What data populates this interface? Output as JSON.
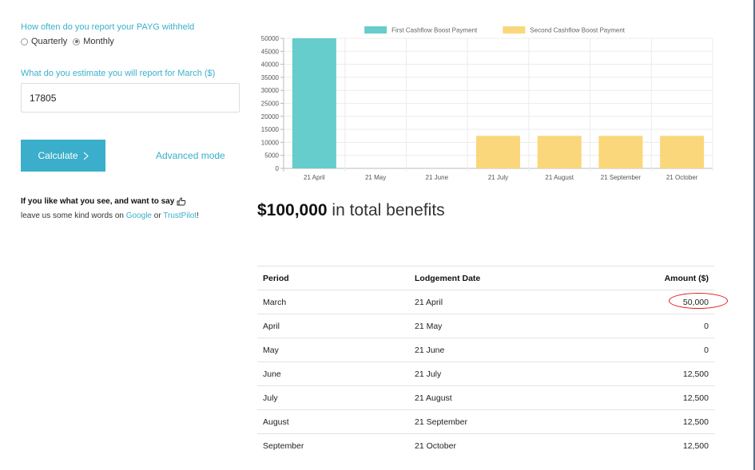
{
  "form": {
    "frequency_label": "How often do you report your PAYG withheld",
    "frequency_options": [
      {
        "label": "Quarterly",
        "checked": false
      },
      {
        "label": "Monthly",
        "checked": true
      }
    ],
    "estimate_label": "What do you estimate you will report for March ($)",
    "estimate_value": "17805",
    "calculate_label": "Calculate",
    "advanced_label": "Advanced mode"
  },
  "promo": {
    "line1": "If you like what you see, and want to say",
    "line2_prefix": "leave us some kind words on ",
    "google": "Google",
    "or": " or ",
    "trustpilot": "TrustPilot",
    "end": "!"
  },
  "headline": {
    "amount": "$100,000",
    "suffix": " in total benefits"
  },
  "chart_data": {
    "type": "bar",
    "categories": [
      "21 April",
      "21 May",
      "21 June",
      "21 July",
      "21 August",
      "21 September",
      "21 October"
    ],
    "series": [
      {
        "name": "First Cashflow Boost Payment",
        "color": "#66cccc",
        "values": [
          50000,
          0,
          0,
          0,
          0,
          0,
          0
        ]
      },
      {
        "name": "Second Cashflow Boost Payment",
        "color": "#fad77a",
        "values": [
          0,
          0,
          0,
          12500,
          12500,
          12500,
          12500
        ]
      }
    ],
    "ylim": [
      0,
      50000
    ],
    "yticks": [
      0,
      5000,
      10000,
      15000,
      20000,
      25000,
      30000,
      35000,
      40000,
      45000,
      50000
    ],
    "stacked": true,
    "legend": "top",
    "grid": true
  },
  "table": {
    "headers": [
      "Period",
      "Lodgement Date",
      "Amount ($)"
    ],
    "rows": [
      {
        "period": "March",
        "date": "21 April",
        "amount": "50,000",
        "highlight": true
      },
      {
        "period": "April",
        "date": "21 May",
        "amount": "0"
      },
      {
        "period": "May",
        "date": "21 June",
        "amount": "0"
      },
      {
        "period": "June",
        "date": "21 July",
        "amount": "12,500"
      },
      {
        "period": "July",
        "date": "21 August",
        "amount": "12,500"
      },
      {
        "period": "August",
        "date": "21 September",
        "amount": "12,500"
      },
      {
        "period": "September",
        "date": "21 October",
        "amount": "12,500"
      }
    ]
  }
}
